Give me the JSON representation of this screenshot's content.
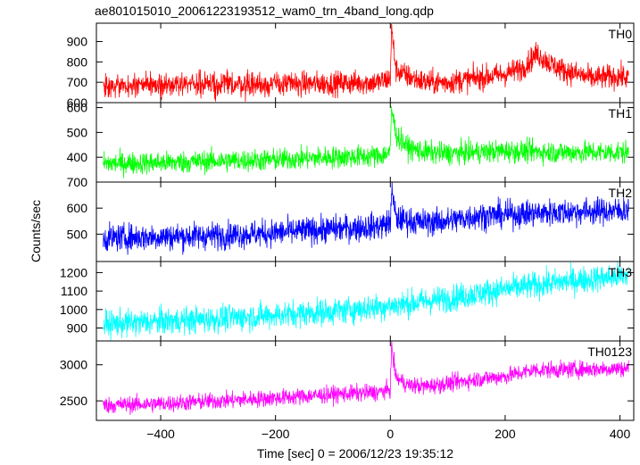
{
  "title": "ae801015010_20061223193512_wam0_trn_4band_long.qdp",
  "xlabel": "Time [sec] 0 = 2006/12/23 19:35:12",
  "ylabel": "Counts/sec",
  "chart_data": {
    "type": "line",
    "title": "ae801015010_20061223193512_wam0_trn_4band_long.qdp",
    "xlabel": "Time [sec] 0 = 2006/12/23 19:35:12",
    "ylabel": "Counts/sec",
    "xlim": [
      -512,
      424
    ],
    "xticks": [
      -400,
      -200,
      0,
      200,
      400
    ],
    "xtick_labels": [
      "−400",
      "−200",
      "0",
      "200",
      "400"
    ],
    "grid": false,
    "panels": [
      {
        "name": "TH0",
        "color": "#ff0000",
        "ylim": [
          600,
          990
        ],
        "yticks": [
          600,
          700,
          800,
          900
        ],
        "x": [
          -500,
          -400,
          -300,
          -200,
          -100,
          -20,
          0,
          2,
          10,
          30,
          60,
          100,
          150,
          200,
          230,
          255,
          280,
          300,
          350,
          400,
          415
        ],
        "y": [
          680,
          685,
          690,
          690,
          695,
          700,
          720,
          960,
          760,
          730,
          700,
          700,
          720,
          740,
          770,
          840,
          790,
          760,
          720,
          730,
          720
        ]
      },
      {
        "name": "TH1",
        "color": "#00ff00",
        "ylim": [
          300,
          620
        ],
        "yticks": [
          400,
          500,
          600
        ],
        "x": [
          -500,
          -400,
          -300,
          -200,
          -100,
          -20,
          0,
          2,
          10,
          30,
          60,
          100,
          150,
          200,
          300,
          400,
          415
        ],
        "y": [
          375,
          378,
          385,
          390,
          400,
          405,
          420,
          600,
          490,
          440,
          420,
          415,
          420,
          425,
          420,
          420,
          420
        ]
      },
      {
        "name": "TH2",
        "color": "#0000ff",
        "ylim": [
          395,
          700
        ],
        "yticks": [
          500,
          600,
          700
        ],
        "x": [
          -500,
          -400,
          -300,
          -200,
          -100,
          -20,
          0,
          2,
          10,
          50,
          100,
          150,
          200,
          300,
          400,
          415
        ],
        "y": [
          485,
          490,
          495,
          505,
          520,
          530,
          545,
          670,
          560,
          545,
          550,
          570,
          575,
          585,
          590,
          595
        ]
      },
      {
        "name": "TH3",
        "color": "#00ffff",
        "ylim": [
          830,
          1260
        ],
        "yticks": [
          900,
          1000,
          1100,
          1200
        ],
        "x": [
          -500,
          -400,
          -300,
          -200,
          -100,
          0,
          100,
          200,
          300,
          400,
          415
        ],
        "y": [
          920,
          935,
          950,
          970,
          990,
          1020,
          1060,
          1110,
          1150,
          1180,
          1190
        ]
      },
      {
        "name": "TH0123",
        "color": "#ff00ff",
        "ylim": [
          2230,
          3330
        ],
        "yticks": [
          2500,
          3000
        ],
        "x": [
          -500,
          -400,
          -300,
          -200,
          -100,
          -20,
          0,
          2,
          10,
          30,
          60,
          100,
          150,
          200,
          250,
          300,
          400,
          415
        ],
        "y": [
          2440,
          2460,
          2500,
          2540,
          2590,
          2620,
          2660,
          3250,
          2820,
          2720,
          2700,
          2740,
          2800,
          2840,
          2930,
          2930,
          2950,
          2950
        ]
      }
    ]
  }
}
